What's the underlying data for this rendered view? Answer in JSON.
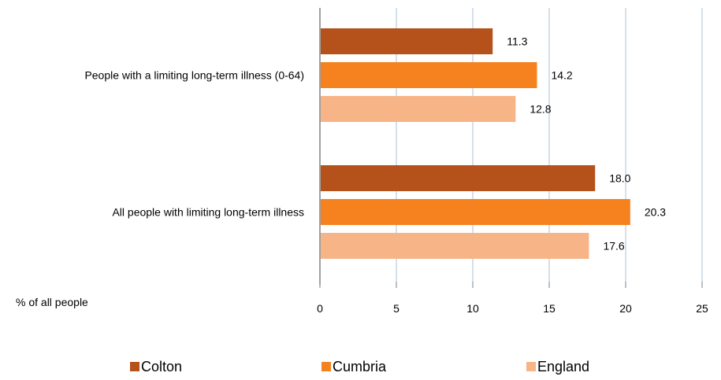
{
  "chart_data": {
    "type": "bar",
    "orientation": "horizontal",
    "categories": [
      "People with a limiting long-term illness (0-64)",
      "All people  with limiting long-term illness"
    ],
    "series": [
      {
        "name": "Colton",
        "values": [
          11.3,
          18.0
        ],
        "labels": [
          "11.3",
          "18.0"
        ],
        "color": "#b5511a"
      },
      {
        "name": "Cumbria",
        "values": [
          14.2,
          20.3
        ],
        "labels": [
          "14.2",
          "20.3"
        ],
        "color": "#f5821f"
      },
      {
        "name": "England",
        "values": [
          12.8,
          17.6
        ],
        "labels": [
          "12.8",
          "17.6"
        ],
        "color": "#f7b487"
      }
    ],
    "xlabel": "% of all people",
    "xlim": [
      0,
      25
    ],
    "xticks": [
      0,
      5,
      10,
      15,
      20,
      25
    ],
    "grid": "vertical",
    "gridColor": "#a9c0d6",
    "legend": "bottom"
  }
}
